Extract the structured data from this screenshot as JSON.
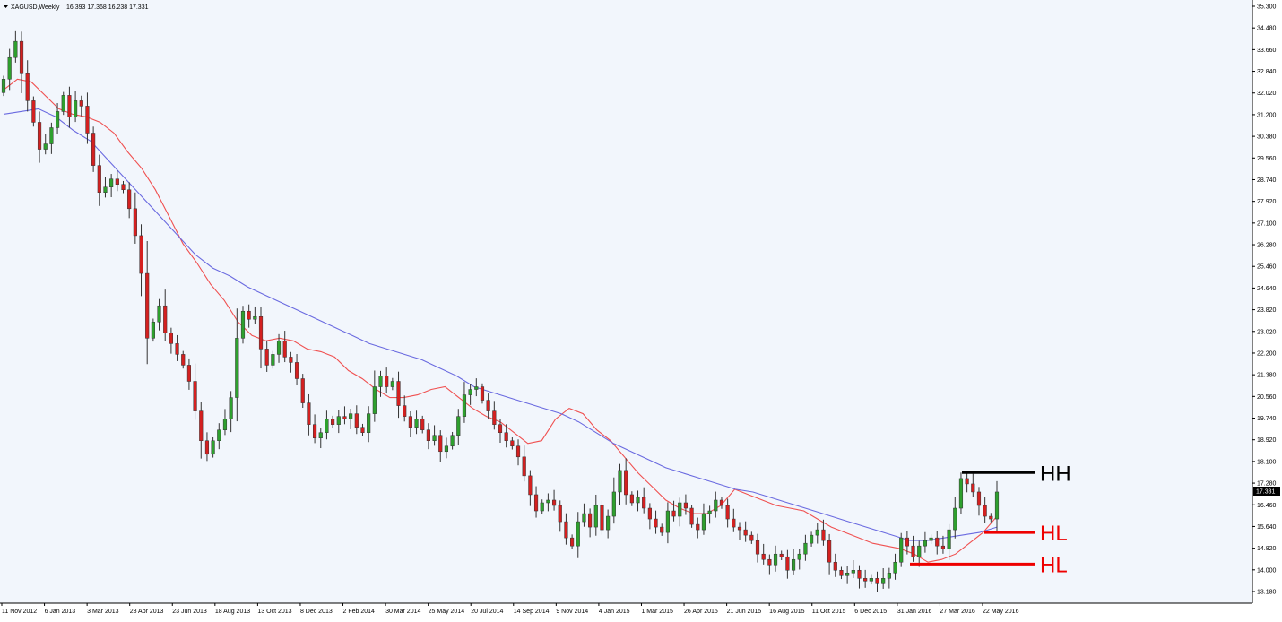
{
  "header": {
    "symbol": "XAGUSD,Weekly",
    "ohlc": "16.393 17.368 16.238 17.331"
  },
  "current_price": "17.331",
  "colors": {
    "bull": "#2ea02e",
    "bear": "#d42020",
    "fast_ma": "#f05050",
    "slow_ma": "#6a6ae0",
    "hh": "#000000",
    "hl": "#ee0000",
    "bg": "#f2f6fc"
  },
  "chart_data": {
    "type": "candlestick",
    "symbol": "XAGUSD",
    "timeframe": "Weekly",
    "y_range": [
      13.18,
      35.3
    ],
    "y_ticks": [
      "35.300",
      "34.480",
      "33.660",
      "32.840",
      "32.020",
      "31.200",
      "30.380",
      "29.560",
      "28.740",
      "27.920",
      "27.100",
      "26.280",
      "25.460",
      "24.640",
      "23.820",
      "23.020",
      "22.200",
      "21.380",
      "20.560",
      "19.740",
      "18.920",
      "18.100",
      "17.280",
      "16.460",
      "15.640",
      "14.820",
      "14.000",
      "13.180"
    ],
    "x_labels": [
      "11 Nov 2012",
      "6 Jan 2013",
      "3 Mar 2013",
      "28 Apr 2013",
      "23 Jun 2013",
      "18 Aug 2013",
      "13 Oct 2013",
      "8 Dec 2013",
      "2 Feb 2014",
      "30 Mar 2014",
      "25 May 2014",
      "20 Jul 2014",
      "14 Sep 2014",
      "9 Nov 2014",
      "4 Jan 2015",
      "1 Mar 2015",
      "26 Apr 2015",
      "21 Jun 2015",
      "16 Aug 2015",
      "11 Oct 2015",
      "6 Dec 2015",
      "31 Jan 2016",
      "27 Mar 2016",
      "22 May 2016"
    ],
    "closes": [
      32.6,
      33.4,
      34.0,
      32.8,
      31.8,
      31.0,
      30.0,
      30.2,
      30.8,
      31.4,
      32.0,
      31.2,
      31.8,
      31.6,
      30.6,
      29.4,
      28.4,
      28.6,
      28.9,
      28.7,
      28.5,
      27.8,
      26.8,
      25.4,
      23.0,
      23.6,
      24.2,
      23.2,
      22.8,
      22.4,
      22.0,
      21.4,
      20.3,
      19.2,
      18.7,
      19.2,
      19.6,
      20.0,
      20.8,
      23.0,
      24.0,
      23.7,
      23.8,
      22.6,
      22.0,
      22.4,
      22.9,
      22.3,
      22.1,
      21.5,
      20.6,
      19.8,
      19.3,
      19.5,
      20.0,
      19.8,
      20.1,
      20.0,
      20.2,
      19.7,
      19.5,
      20.2,
      21.2,
      21.6,
      21.2,
      21.4,
      20.5,
      20.1,
      19.7,
      20.0,
      19.6,
      19.2,
      19.4,
      18.8,
      19.0,
      19.4,
      20.1,
      20.9,
      21.1,
      21.2,
      20.7,
      20.3,
      19.8,
      19.5,
      19.2,
      19.0,
      18.6,
      17.9,
      17.2,
      16.6,
      16.9,
      17.0,
      16.8,
      16.2,
      15.6,
      15.3,
      16.2,
      16.5,
      16.0,
      16.8,
      15.9,
      16.4,
      17.3,
      18.1,
      17.2,
      16.9,
      17.1,
      16.7,
      16.3,
      16.0,
      15.8,
      16.6,
      16.4,
      16.9,
      16.7,
      16.1,
      15.9,
      16.5,
      16.6,
      17.0,
      16.8,
      16.3,
      16.0,
      15.9,
      15.7,
      15.5,
      15.0,
      14.8,
      14.6,
      15.0,
      14.9,
      14.4,
      14.8,
      15.0,
      15.4,
      15.7,
      15.9,
      15.5,
      14.7,
      14.4,
      14.2,
      14.3,
      14.4,
      14.1,
      14.0,
      14.1,
      13.9,
      14.1,
      14.3,
      14.7,
      15.6,
      15.3,
      14.9,
      15.3,
      15.5,
      15.6,
      15.3,
      15.2,
      15.9,
      16.7,
      17.8,
      17.6,
      17.3,
      16.8,
      16.4,
      16.3,
      17.3
    ],
    "fast_ma": [
      32.2,
      32.6,
      32.5,
      32.0,
      31.5,
      31.3,
      31.2,
      31.0,
      30.6,
      29.9,
      29.3,
      28.5,
      27.5,
      26.5,
      25.8,
      25.0,
      24.4,
      23.6,
      23.1,
      22.9,
      23.0,
      22.9,
      22.6,
      22.5,
      22.3,
      21.8,
      21.5,
      21.1,
      20.8,
      20.8,
      20.9,
      21.1,
      21.2,
      20.8,
      20.4,
      20.1,
      19.9,
      19.5,
      19.1,
      19.2,
      20.0,
      20.4,
      20.2,
      19.6,
      19.2,
      18.6,
      18.0,
      17.5,
      17.0,
      16.7,
      16.5,
      16.5,
      16.8,
      17.4,
      17.2,
      17.0,
      16.8,
      16.7,
      16.6,
      16.3,
      16.0,
      15.8,
      15.6,
      15.4,
      15.3,
      15.2,
      15.0,
      14.7,
      14.8,
      15.0,
      15.4,
      15.8,
      16.4
    ],
    "slow_ma": [
      31.3,
      31.4,
      31.5,
      31.2,
      30.7,
      30.3,
      29.6,
      28.9,
      28.2,
      27.5,
      26.8,
      26.1,
      25.6,
      25.3,
      24.9,
      24.6,
      24.3,
      24.0,
      23.7,
      23.4,
      23.1,
      22.8,
      22.6,
      22.4,
      22.2,
      21.9,
      21.6,
      21.2,
      21.0,
      20.8,
      20.6,
      20.4,
      20.2,
      19.9,
      19.5,
      19.1,
      18.8,
      18.5,
      18.2,
      18.0,
      17.8,
      17.6,
      17.4,
      17.3,
      17.1,
      16.9,
      16.7,
      16.5,
      16.3,
      16.1,
      15.9,
      15.7,
      15.5,
      15.5,
      15.6,
      15.7,
      15.8,
      16.0
    ],
    "annotations": [
      {
        "label": "HH",
        "price": 18.02,
        "kind": "higher-high"
      },
      {
        "label": "HL",
        "price": 15.8,
        "kind": "higher-low"
      },
      {
        "label": "HL",
        "price": 14.63,
        "kind": "higher-low"
      }
    ]
  }
}
